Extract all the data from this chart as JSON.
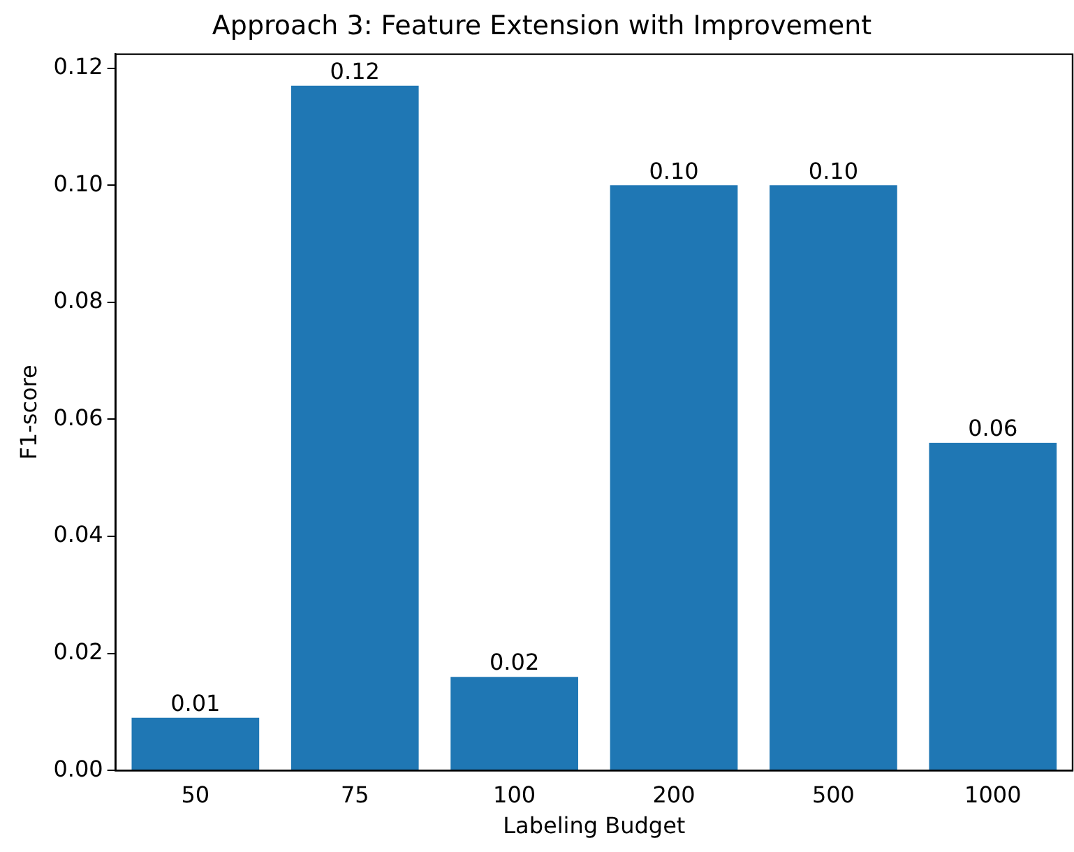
{
  "chart_data": {
    "type": "bar",
    "title": "Approach 3: Feature Extension with Improvement",
    "xlabel": "Labeling Budget",
    "ylabel": "F1-score",
    "categories": [
      "50",
      "75",
      "100",
      "200",
      "500",
      "1000"
    ],
    "values": [
      0.009,
      0.117,
      0.016,
      0.1,
      0.1,
      0.056
    ],
    "value_labels": [
      "0.01",
      "0.12",
      "0.02",
      "0.10",
      "0.10",
      "0.06"
    ],
    "color": "#1f77b4",
    "ylim": [
      0,
      0.1224
    ],
    "yticks": [
      {
        "value": 0,
        "label": "0.00"
      },
      {
        "value": 0.02,
        "label": "0.02"
      },
      {
        "value": 0.04,
        "label": "0.04"
      },
      {
        "value": 0.06,
        "label": "0.06"
      },
      {
        "value": 0.08,
        "label": "0.08"
      },
      {
        "value": 0.1,
        "label": "0.10"
      },
      {
        "value": 0.12,
        "label": "0.12"
      }
    ],
    "grid": false,
    "legend": false
  }
}
